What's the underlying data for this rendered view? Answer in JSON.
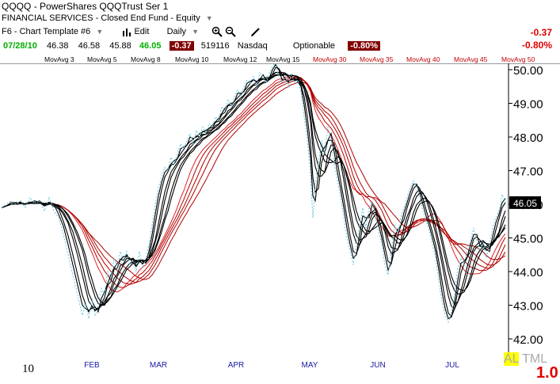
{
  "header": {
    "symbol": "QQQQ",
    "name": "PowerShares QQQTrust Ser 1",
    "sector": "FINANCIAL SERVICES",
    "subsector": "Closed End Fund - Equity",
    "template": "F6 - Chart Template #6",
    "edit_label": "Edit",
    "period": "Daily",
    "date": "07/28/10",
    "open": "46.38",
    "high": "46.58",
    "low": "45.88",
    "close": "46.05",
    "change": "-0.37",
    "volume": "519116",
    "exchange": "Nasdaq",
    "optionable": "Optionable",
    "change_pct": "-0.80%",
    "right_change": "-0.37",
    "right_change_pct": "-0.80%"
  },
  "icons": {
    "bar": "bar-chart-icon",
    "zoom_in": "zoom-in-icon",
    "zoom_out": "zoom-out-icon",
    "pencil": "pencil-icon"
  },
  "moving_averages": {
    "black": [
      "MovAvg 3",
      "MovAvg 5",
      "MovAvg 8",
      "MovAvg 10",
      "MovAvg 12",
      "MovAvg 15"
    ],
    "red": [
      "MovAvg 30",
      "MovAvg 35",
      "MovAvg 40",
      "MovAvg 45",
      "MovAvg 50"
    ]
  },
  "chart_data": {
    "type": "line",
    "x_labels": [
      "FEB",
      "MAR",
      "APR",
      "MAY",
      "JUN",
      "JUL"
    ],
    "y_ticks": [
      "50.00",
      "49.00",
      "48.00",
      "47.00",
      "46.00",
      "45.00",
      "44.00",
      "43.00",
      "42.00"
    ],
    "ylim": [
      41.6,
      50.3
    ],
    "last_price_label": "46.05",
    "price_series": [
      [
        0,
        45.9
      ],
      [
        6,
        46.0
      ],
      [
        12,
        46.1
      ],
      [
        18,
        46.0
      ],
      [
        24,
        46.1
      ],
      [
        30,
        45.9
      ],
      [
        36,
        46.2
      ],
      [
        42,
        46.0
      ],
      [
        48,
        46.1
      ],
      [
        54,
        45.8
      ],
      [
        60,
        46.2
      ],
      [
        66,
        45.8
      ],
      [
        72,
        45.6
      ],
      [
        78,
        45.1
      ],
      [
        84,
        44.5
      ],
      [
        90,
        43.9
      ],
      [
        96,
        43.3
      ],
      [
        102,
        42.7
      ],
      [
        106,
        43.1
      ],
      [
        110,
        42.6
      ],
      [
        114,
        43.2
      ],
      [
        118,
        42.7
      ],
      [
        122,
        42.9
      ],
      [
        126,
        43.5
      ],
      [
        130,
        43.3
      ],
      [
        134,
        44.0
      ],
      [
        138,
        43.8
      ],
      [
        142,
        44.4
      ],
      [
        146,
        44.1
      ],
      [
        150,
        44.6
      ],
      [
        154,
        44.3
      ],
      [
        158,
        44.6
      ],
      [
        162,
        44.2
      ],
      [
        166,
        44.3
      ],
      [
        170,
        44.0
      ],
      [
        174,
        44.6
      ],
      [
        178,
        44.1
      ],
      [
        182,
        44.4
      ],
      [
        186,
        44.8
      ],
      [
        190,
        45.4
      ],
      [
        194,
        46.0
      ],
      [
        198,
        46.5
      ],
      [
        202,
        46.8
      ],
      [
        206,
        47.1
      ],
      [
        210,
        47.0
      ],
      [
        214,
        47.4
      ],
      [
        218,
        47.2
      ],
      [
        222,
        47.5
      ],
      [
        226,
        47.8
      ],
      [
        230,
        47.6
      ],
      [
        234,
        47.9
      ],
      [
        238,
        48.1
      ],
      [
        242,
        47.8
      ],
      [
        246,
        48.2
      ],
      [
        250,
        48.0
      ],
      [
        254,
        48.3
      ],
      [
        258,
        48.1
      ],
      [
        262,
        48.4
      ],
      [
        266,
        48.3
      ],
      [
        270,
        48.6
      ],
      [
        274,
        48.5
      ],
      [
        278,
        48.9
      ],
      [
        282,
        48.8
      ],
      [
        286,
        49.1
      ],
      [
        290,
        48.9
      ],
      [
        294,
        49.2
      ],
      [
        298,
        49.4
      ],
      [
        302,
        49.2
      ],
      [
        306,
        49.5
      ],
      [
        310,
        49.7
      ],
      [
        314,
        49.6
      ],
      [
        318,
        49.8
      ],
      [
        322,
        49.5
      ],
      [
        326,
        49.9
      ],
      [
        330,
        49.8
      ],
      [
        334,
        49.6
      ],
      [
        338,
        49.9
      ],
      [
        342,
        50.1
      ],
      [
        346,
        50.2
      ],
      [
        350,
        49.8
      ],
      [
        354,
        49.6
      ],
      [
        358,
        49.8
      ],
      [
        362,
        49.5
      ],
      [
        366,
        49.9
      ],
      [
        370,
        49.6
      ],
      [
        374,
        49.7
      ],
      [
        378,
        49.3
      ],
      [
        382,
        48.6
      ],
      [
        386,
        47.9
      ],
      [
        390,
        46.9
      ],
      [
        393,
        45.6
      ],
      [
        396,
        46.6
      ],
      [
        400,
        47.2
      ],
      [
        404,
        47.9
      ],
      [
        408,
        47.5
      ],
      [
        412,
        48.3
      ],
      [
        416,
        47.9
      ],
      [
        420,
        47.2
      ],
      [
        424,
        46.7
      ],
      [
        428,
        46.2
      ],
      [
        432,
        45.6
      ],
      [
        436,
        45.0
      ],
      [
        440,
        44.6
      ],
      [
        444,
        44.2
      ],
      [
        448,
        44.8
      ],
      [
        452,
        45.4
      ],
      [
        456,
        45.9
      ],
      [
        460,
        45.3
      ],
      [
        464,
        45.9
      ],
      [
        468,
        46.1
      ],
      [
        472,
        45.6
      ],
      [
        476,
        45.2
      ],
      [
        480,
        44.8
      ],
      [
        484,
        44.2
      ],
      [
        488,
        43.9
      ],
      [
        492,
        44.6
      ],
      [
        496,
        45.4
      ],
      [
        500,
        45.1
      ],
      [
        504,
        45.6
      ],
      [
        508,
        45.9
      ],
      [
        512,
        46.2
      ],
      [
        516,
        46.5
      ],
      [
        520,
        46.7
      ],
      [
        524,
        46.5
      ],
      [
        528,
        46.2
      ],
      [
        532,
        45.8
      ],
      [
        536,
        45.5
      ],
      [
        540,
        45.2
      ],
      [
        544,
        44.8
      ],
      [
        548,
        44.4
      ],
      [
        552,
        43.7
      ],
      [
        556,
        43.1
      ],
      [
        560,
        42.7
      ],
      [
        564,
        42.5
      ],
      [
        568,
        42.8
      ],
      [
        572,
        43.4
      ],
      [
        576,
        44.1
      ],
      [
        580,
        44.4
      ],
      [
        584,
        44.2
      ],
      [
        588,
        44.7
      ],
      [
        592,
        44.9
      ],
      [
        596,
        45.3
      ],
      [
        600,
        44.9
      ],
      [
        604,
        44.6
      ],
      [
        608,
        44.9
      ],
      [
        612,
        44.4
      ],
      [
        616,
        44.8
      ],
      [
        620,
        45.3
      ],
      [
        624,
        45.6
      ],
      [
        628,
        45.8
      ],
      [
        632,
        46.3
      ],
      [
        636,
        46.05
      ]
    ],
    "ma_period_spread": {
      "black": [
        3,
        5,
        8,
        10,
        12,
        15
      ],
      "red": [
        30,
        35,
        40,
        45,
        50
      ]
    },
    "colors": {
      "price": "#5fc8e0",
      "short_ma": "#000000",
      "long_ma_min": "#e02020",
      "long_ma_max": "#b00000",
      "price_tag_bg": "#000000"
    }
  },
  "bottom": {
    "left_label": "10",
    "al_label": "AL",
    "tml_label": "TML",
    "right_value": "1.0"
  }
}
